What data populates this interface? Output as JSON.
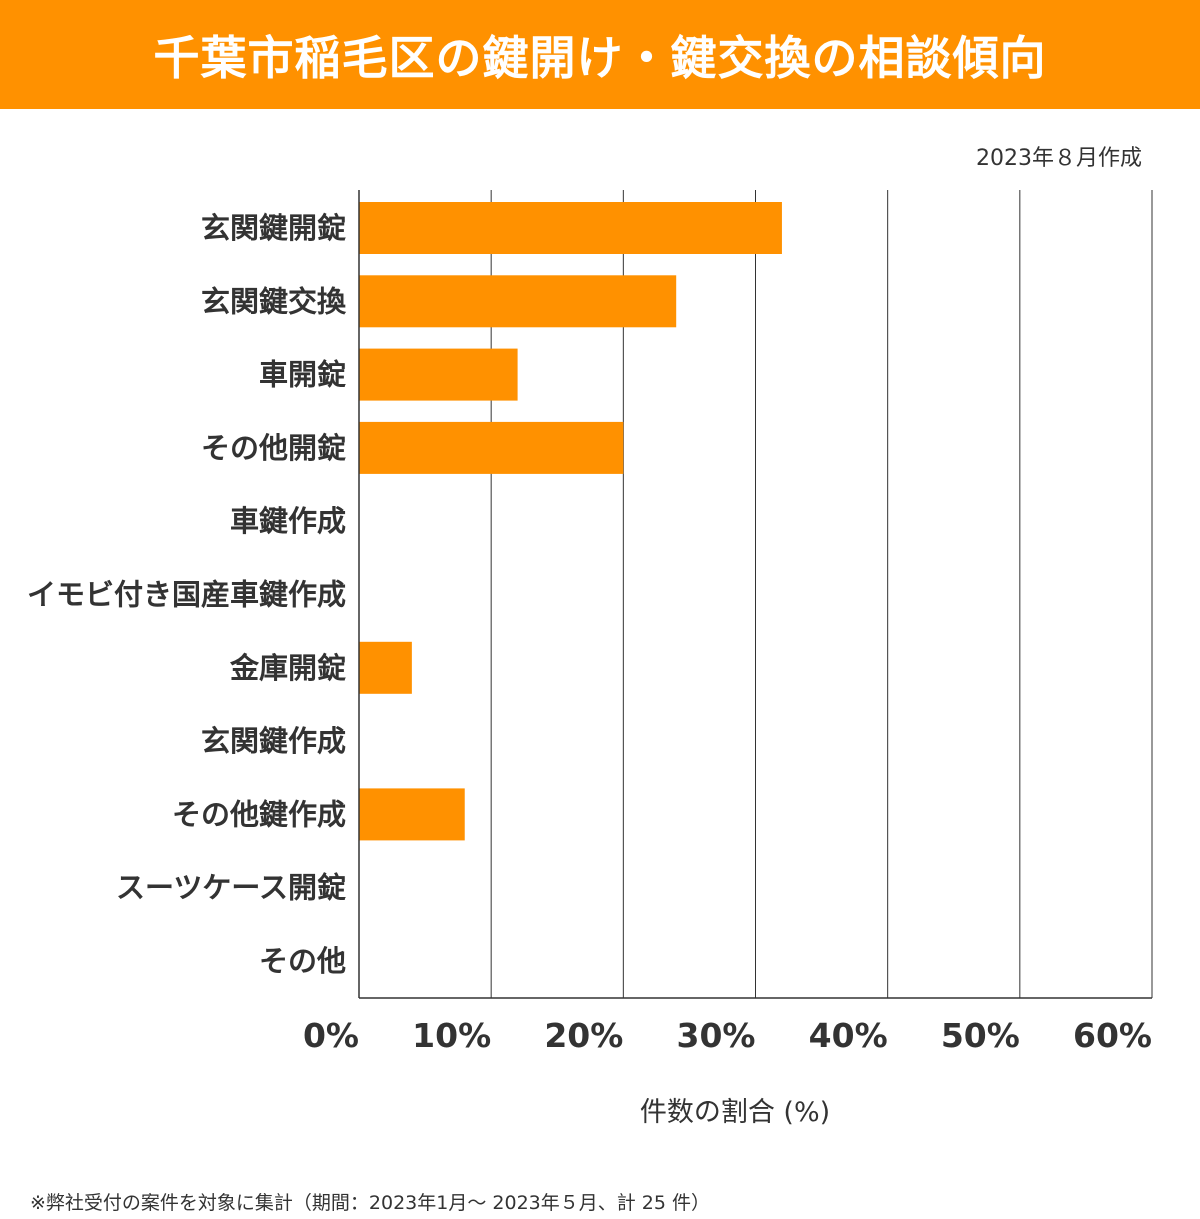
{
  "header": {
    "title": "千葉市稲毛区の鍵開け・鍵交換の相談傾向"
  },
  "created_label": "2023年８月作成",
  "footnote": "※弊社受付の案件を対象に集計（期間：2023年1月～ 2023年５月、計 25 件）",
  "chart_data": {
    "type": "bar",
    "orientation": "horizontal",
    "title": "千葉市稲毛区の鍵開け・鍵交換の相談傾向",
    "categories": [
      "玄関鍵開錠",
      "玄関鍵交換",
      "車開錠",
      "その他開錠",
      "車鍵作成",
      "イモビ付き国産車鍵作成",
      "金庫開錠",
      "玄関鍵作成",
      "その他鍵作成",
      "スーツケース開錠",
      "その他"
    ],
    "values": [
      32,
      24,
      12,
      20,
      0,
      0,
      4,
      0,
      8,
      0,
      0
    ],
    "xlabel": "件数の割合 (%)",
    "ylabel": "",
    "xlim": [
      0,
      60
    ],
    "xticks": [
      "0%",
      "10%",
      "20%",
      "30%",
      "40%",
      "50%",
      "60%"
    ],
    "grid": "vertical",
    "color": "#FF9100"
  }
}
